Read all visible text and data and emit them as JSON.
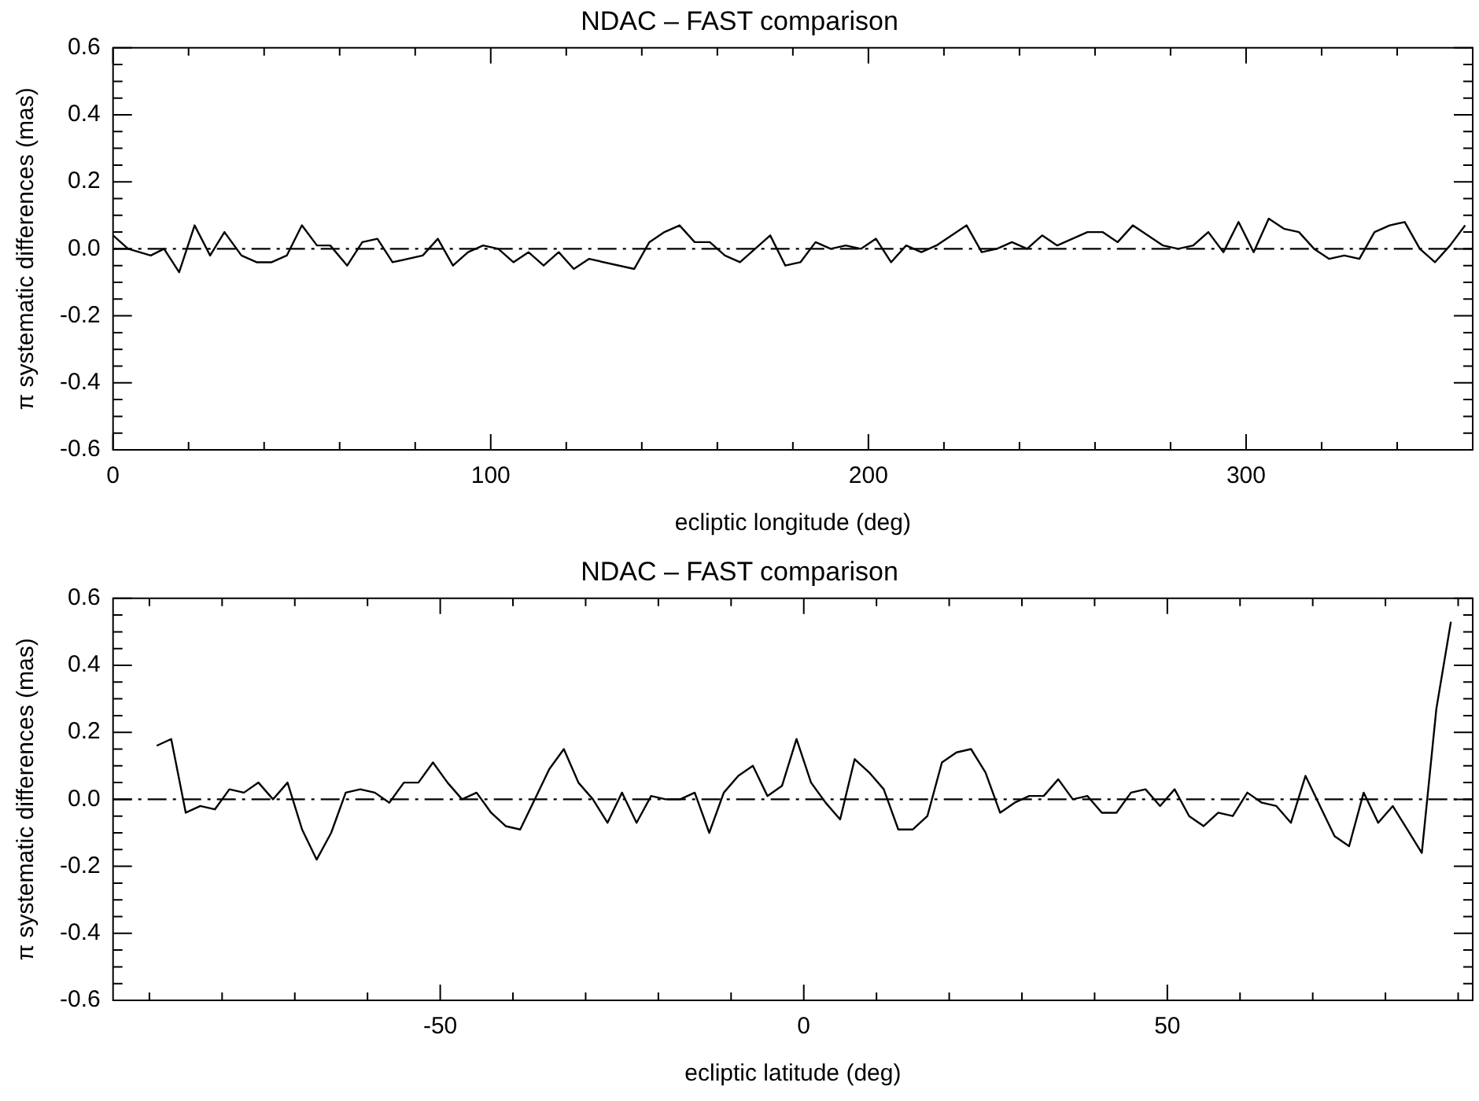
{
  "chart_data": [
    {
      "type": "line",
      "title": "NDAC – FAST comparison",
      "xlabel": "ecliptic longitude (deg)",
      "ylabel": "π systematic differences (mas)",
      "x": [
        0,
        4,
        10,
        13.5,
        17.5,
        21.6,
        25.7,
        29.5,
        34,
        38,
        42,
        46,
        50,
        54,
        57.5,
        62,
        66,
        70,
        74,
        82,
        86,
        90,
        94,
        98,
        102,
        106,
        110,
        114,
        118,
        122,
        126,
        138,
        142,
        146,
        150,
        154,
        158,
        162,
        166,
        170,
        174,
        178,
        182,
        186,
        190,
        194,
        198,
        202,
        206,
        210,
        214,
        218,
        226,
        230,
        234,
        238,
        242,
        246,
        250,
        258,
        262,
        266,
        270,
        278,
        282,
        286,
        290,
        294,
        298,
        302,
        306,
        310,
        314,
        318,
        322,
        326,
        330,
        334,
        338,
        342,
        346,
        350,
        354,
        358
      ],
      "series": [
        {
          "color": "#000000",
          "values": [
            0.04,
            0,
            -0.02,
            0,
            -0.07,
            0.07,
            -0.02,
            0.05,
            -0.02,
            -0.04,
            -0.04,
            -0.02,
            0.07,
            0.01,
            0.01,
            -0.05,
            0.02,
            0.03,
            -0.04,
            -0.02,
            0.03,
            -0.05,
            -0.01,
            0.01,
            0,
            -0.04,
            -0.01,
            -0.05,
            -0.01,
            -0.06,
            -0.03,
            -0.06,
            0.02,
            0.05,
            0.07,
            0.02,
            0.02,
            -0.02,
            -0.04,
            0,
            0.04,
            -0.05,
            -0.04,
            0.02,
            0,
            0.01,
            0,
            0.03,
            -0.04,
            0.01,
            -0.01,
            0.01,
            0.07,
            -0.01,
            0,
            0.02,
            0,
            0.04,
            0.01,
            0.05,
            0.05,
            0.02,
            0.07,
            0.01,
            0,
            0.01,
            0.05,
            -0.01,
            0.08,
            -0.01,
            0.09,
            0.06,
            0.05,
            0,
            -0.03,
            -0.02,
            -0.03,
            0.05,
            0.07,
            0.08,
            0,
            -0.04,
            0.01,
            0.07
          ]
        }
      ],
      "xlim": [
        0,
        360
      ],
      "xticks": [
        0,
        {
          "value": 20,
          "label": null
        },
        {
          "value": 40,
          "label": null
        },
        {
          "value": 60,
          "label": null
        },
        {
          "value": 80,
          "label": null
        },
        100,
        {
          "value": 120,
          "label": null
        },
        {
          "value": 140,
          "label": null
        },
        {
          "value": 160,
          "label": null
        },
        {
          "value": 180,
          "label": null
        },
        200,
        {
          "value": 220,
          "label": null
        },
        {
          "value": 240,
          "label": null
        },
        {
          "value": 260,
          "label": null
        },
        {
          "value": 280,
          "label": null
        },
        300,
        {
          "value": 320,
          "label": null
        },
        {
          "value": 340,
          "label": null
        }
      ],
      "ylim": [
        -0.6,
        0.6
      ],
      "yticks": [
        -0.6,
        {
          "value": -0.55,
          "label": null
        },
        {
          "value": -0.5,
          "label": null
        },
        {
          "value": -0.45,
          "label": null
        },
        -0.4,
        {
          "value": -0.35,
          "label": null
        },
        {
          "value": -0.3,
          "label": null
        },
        {
          "value": -0.25,
          "label": null
        },
        -0.2,
        {
          "value": -0.15,
          "label": null
        },
        {
          "value": -0.1,
          "label": null
        },
        {
          "value": -0.05,
          "label": null
        },
        {
          "value": 0,
          "label": "0.0"
        },
        {
          "value": 0.05,
          "label": null
        },
        {
          "value": 0.1,
          "label": null
        },
        {
          "value": 0.15,
          "label": null
        },
        0.2,
        {
          "value": 0.25,
          "label": null
        },
        {
          "value": 0.3,
          "label": null
        },
        {
          "value": 0.35,
          "label": null
        },
        0.4,
        {
          "value": 0.45,
          "label": null
        },
        {
          "value": 0.5,
          "label": null
        },
        {
          "value": 0.55,
          "label": null
        },
        0.6
      ],
      "ref_lines": [
        {
          "axis": "y",
          "value": 0,
          "line_style": "dashed",
          "color": "#000000"
        }
      ],
      "grid": false,
      "legend": false
    },
    {
      "type": "line",
      "title": "NDAC – FAST comparison",
      "xlabel": "ecliptic latitude (deg)",
      "ylabel": "π systematic differences (mas)",
      "x": [
        -89,
        -87,
        -85,
        -83,
        -81,
        -79,
        -77,
        -75,
        -73,
        -71,
        -69,
        -67,
        -65,
        -63,
        -61,
        -59,
        -57,
        -55,
        -53,
        -51,
        -49,
        -47,
        -45,
        -43,
        -41,
        -39,
        -37,
        -35,
        -33,
        -31,
        -29,
        -27,
        -25,
        -23,
        -21,
        -19,
        -17,
        -15,
        -13,
        -11,
        -9,
        -7,
        -5,
        -3,
        -1,
        1,
        3,
        5,
        7,
        9,
        11,
        13,
        15,
        17,
        19,
        21,
        23,
        25,
        27,
        29,
        31,
        33,
        35,
        37,
        39,
        41,
        43,
        45,
        47,
        49,
        51,
        53,
        55,
        57,
        59,
        61,
        63,
        65,
        67,
        69,
        71,
        73,
        75,
        77,
        79,
        81,
        83,
        85,
        87,
        89
      ],
      "series": [
        {
          "color": "#000000",
          "values": [
            0.16,
            0.18,
            -0.04,
            -0.02,
            -0.03,
            0.03,
            0.02,
            0.05,
            0,
            0.05,
            -0.09,
            -0.18,
            -0.1,
            0.02,
            0.03,
            0.02,
            -0.01,
            0.05,
            0.05,
            0.11,
            0.05,
            0,
            0.02,
            -0.04,
            -0.08,
            -0.09,
            0,
            0.09,
            0.15,
            0.05,
            0,
            -0.07,
            0.02,
            -0.07,
            0.01,
            0,
            0,
            0.02,
            -0.1,
            0.02,
            0.07,
            0.1,
            0.01,
            0.04,
            0.18,
            0.05,
            -0.01,
            -0.06,
            0.12,
            0.08,
            0.03,
            -0.09,
            -0.09,
            -0.05,
            0.11,
            0.14,
            0.15,
            0.08,
            -0.04,
            -0.01,
            0.01,
            0.01,
            0.06,
            0,
            0.01,
            -0.04,
            -0.04,
            0.02,
            0.03,
            -0.02,
            0.03,
            -0.05,
            -0.08,
            -0.04,
            -0.05,
            0.02,
            -0.01,
            -0.02,
            -0.07,
            0.07,
            -0.02,
            -0.11,
            -0.14,
            0.02,
            -0.07,
            -0.02,
            -0.09,
            -0.16,
            0.27,
            0.53
          ]
        }
      ],
      "xlim": [
        -95,
        92
      ],
      "xticks": [
        {
          "value": -90,
          "label": null
        },
        {
          "value": -80,
          "label": null
        },
        {
          "value": -70,
          "label": null
        },
        {
          "value": -60,
          "label": null
        },
        -50,
        {
          "value": -40,
          "label": null
        },
        {
          "value": -30,
          "label": null
        },
        {
          "value": -20,
          "label": null
        },
        {
          "value": -10,
          "label": null
        },
        0,
        {
          "value": 10,
          "label": null
        },
        {
          "value": 20,
          "label": null
        },
        {
          "value": 30,
          "label": null
        },
        {
          "value": 40,
          "label": null
        },
        50,
        {
          "value": 60,
          "label": null
        },
        {
          "value": 70,
          "label": null
        },
        {
          "value": 80,
          "label": null
        },
        {
          "value": 90,
          "label": null
        }
      ],
      "ylim": [
        -0.6,
        0.6
      ],
      "yticks": [
        -0.6,
        {
          "value": -0.55,
          "label": null
        },
        {
          "value": -0.5,
          "label": null
        },
        {
          "value": -0.45,
          "label": null
        },
        -0.4,
        {
          "value": -0.35,
          "label": null
        },
        {
          "value": -0.3,
          "label": null
        },
        {
          "value": -0.25,
          "label": null
        },
        -0.2,
        {
          "value": -0.15,
          "label": null
        },
        {
          "value": -0.1,
          "label": null
        },
        {
          "value": -0.05,
          "label": null
        },
        {
          "value": 0,
          "label": "0.0"
        },
        {
          "value": 0.05,
          "label": null
        },
        {
          "value": 0.1,
          "label": null
        },
        {
          "value": 0.15,
          "label": null
        },
        0.2,
        {
          "value": 0.25,
          "label": null
        },
        {
          "value": 0.3,
          "label": null
        },
        {
          "value": 0.35,
          "label": null
        },
        0.4,
        {
          "value": 0.45,
          "label": null
        },
        {
          "value": 0.5,
          "label": null
        },
        {
          "value": 0.55,
          "label": null
        },
        0.6
      ],
      "ref_lines": [
        {
          "axis": "y",
          "value": 0,
          "line_style": "dashed",
          "color": "#000000"
        }
      ],
      "grid": false,
      "legend": false
    }
  ]
}
